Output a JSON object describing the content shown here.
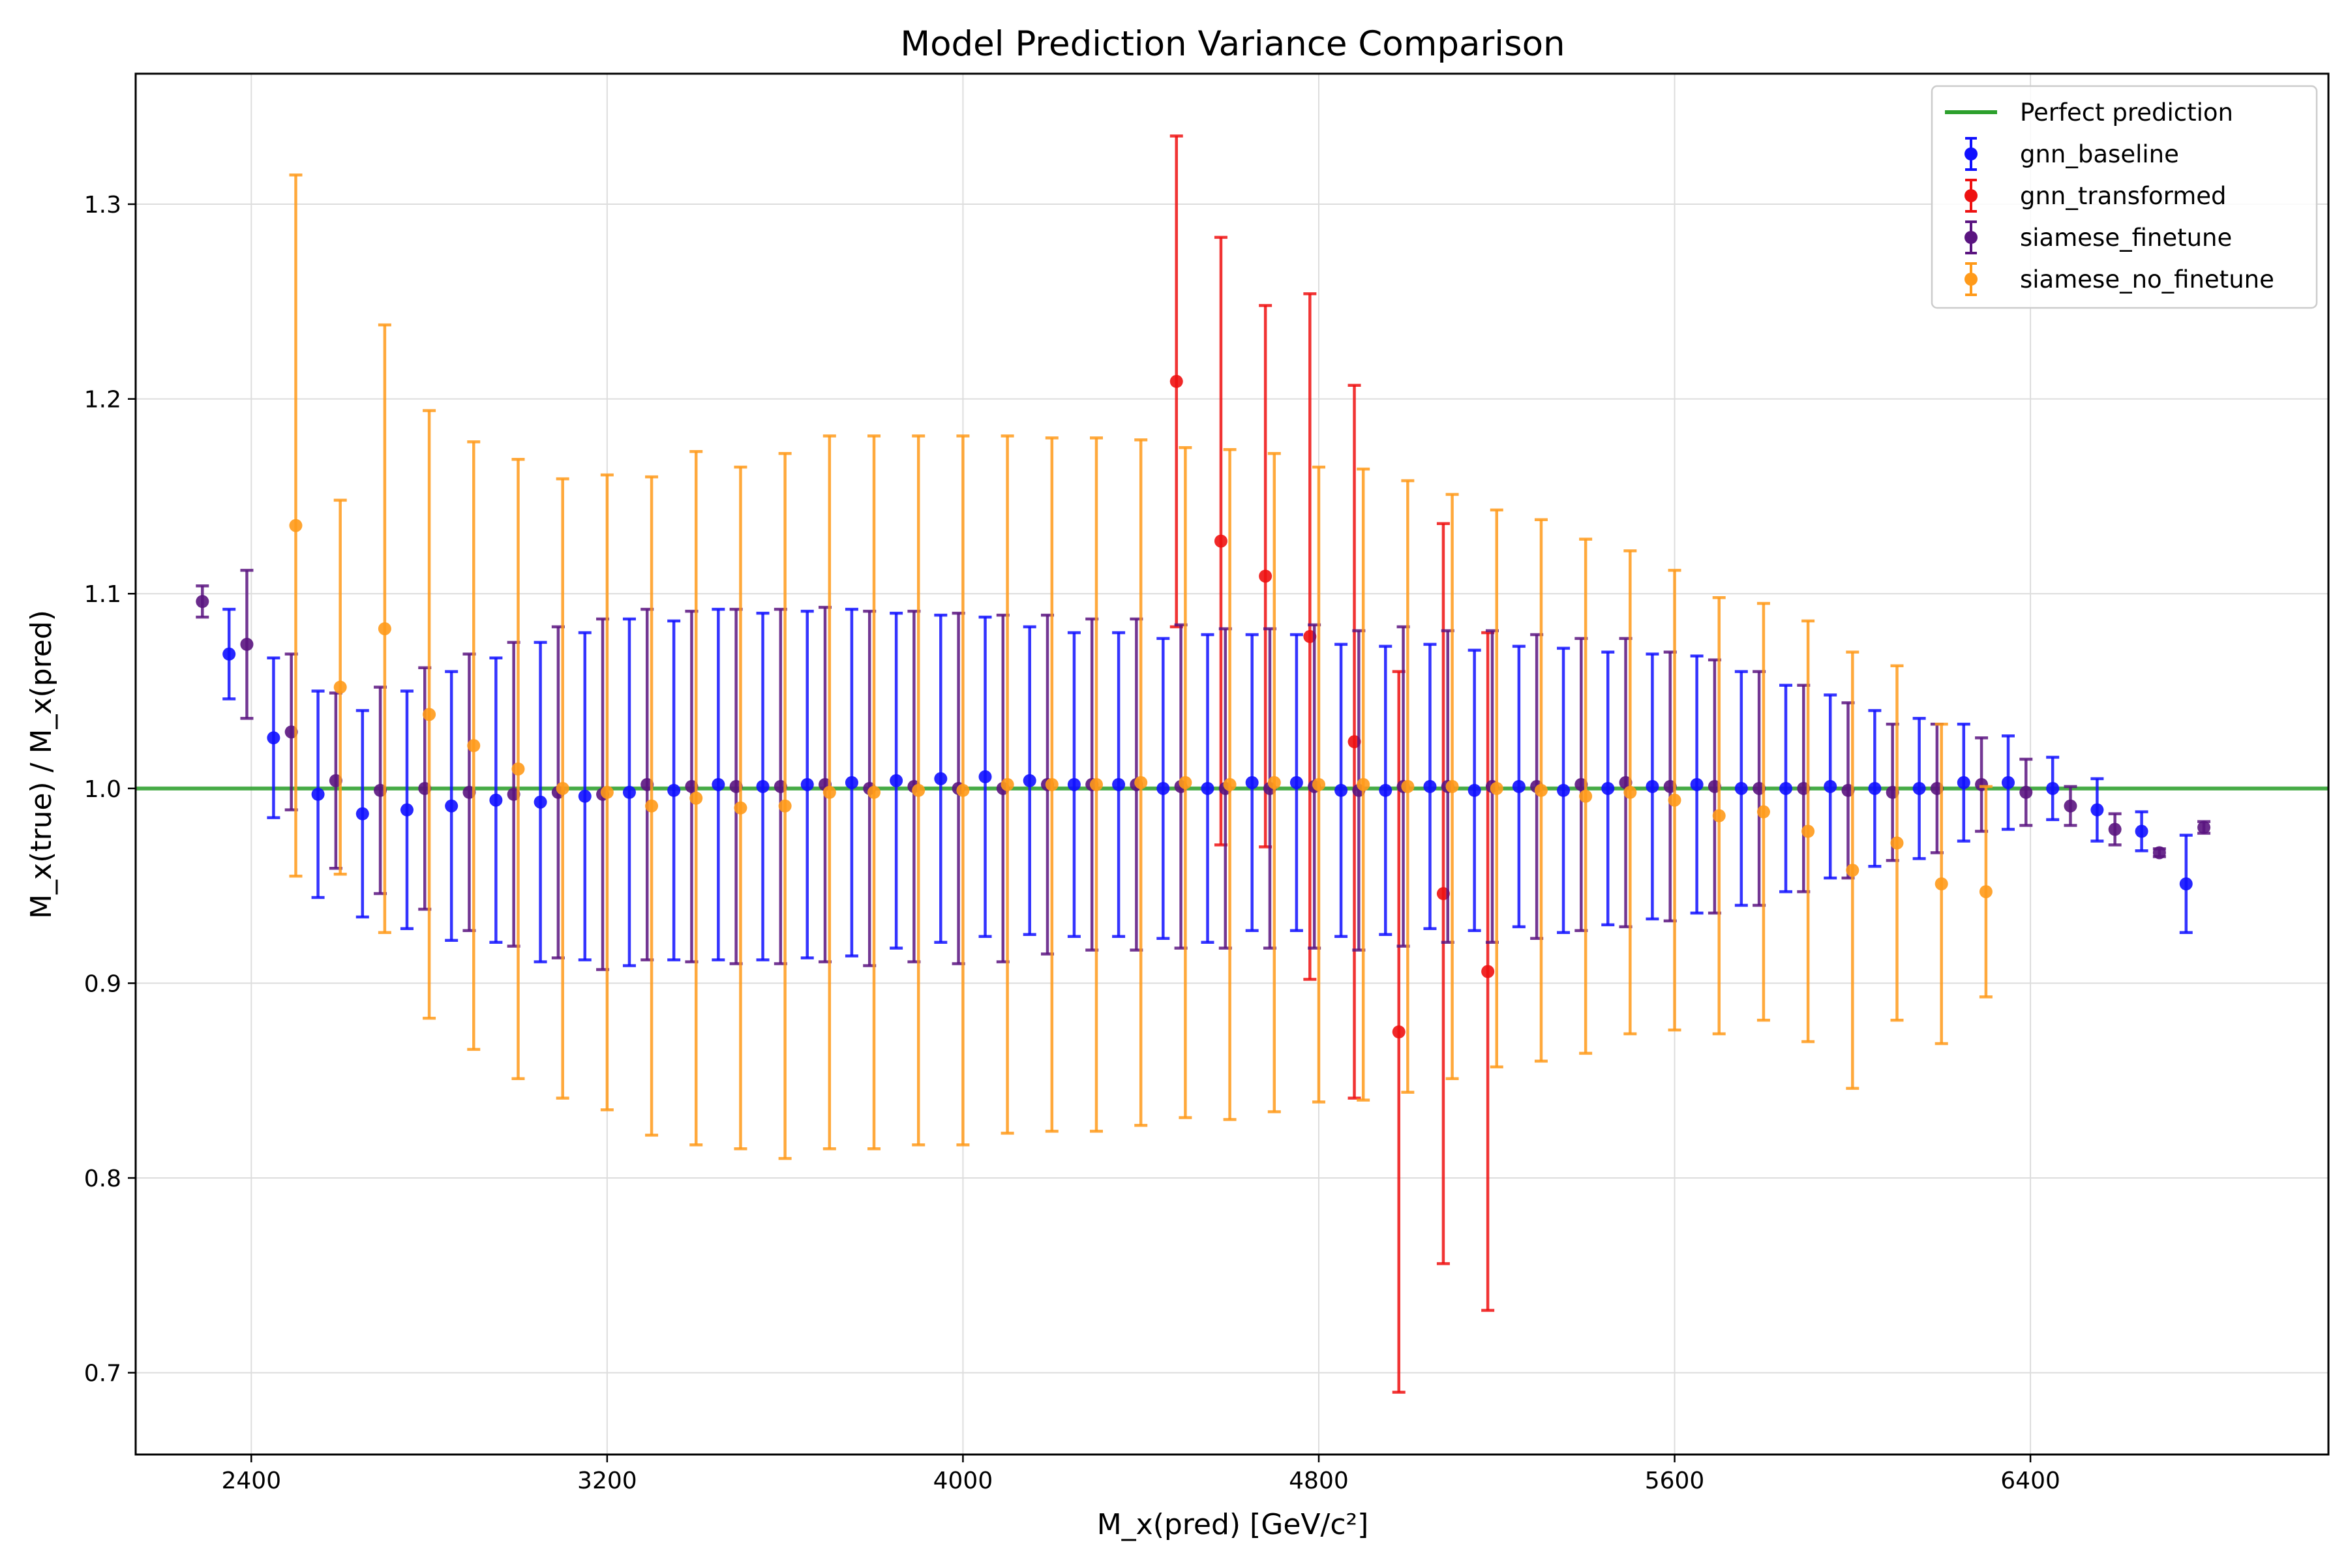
{
  "chart_data": {
    "type": "scatter",
    "title": "Model Prediction Variance Comparison",
    "xlabel": "M_x(pred) [GeV/c²]",
    "ylabel": "M_x(true) / M_x(pred)",
    "xlim": [
      2140,
      7070
    ],
    "ylim": [
      0.658,
      1.367
    ],
    "xticks": [
      2400,
      3200,
      4000,
      4800,
      5600,
      6400
    ],
    "yticks": [
      0.7,
      0.8,
      0.9,
      1.0,
      1.1,
      1.2,
      1.3
    ],
    "grid": true,
    "legend_position": "top-right",
    "reference_line": {
      "label": "Perfect prediction",
      "y": 1.0,
      "color": "#2ca02c"
    },
    "series": [
      {
        "name": "gnn_baseline",
        "color": "#1010ff",
        "x": [
          2350,
          2450,
          2550,
          2650,
          2750,
          2850,
          2950,
          3050,
          3150,
          3250,
          3350,
          3450,
          3550,
          3650,
          3750,
          3850,
          3950,
          4050,
          4150,
          4250,
          4350,
          4450,
          4550,
          4650,
          4750,
          4850,
          4950,
          5050,
          5150,
          5250,
          5350,
          5450,
          5550,
          5650,
          5750,
          5850,
          5950,
          6050,
          6150,
          6250,
          6350,
          6450,
          6550,
          6650,
          6750
        ],
        "y": [
          1.069,
          1.026,
          0.997,
          0.987,
          0.989,
          0.991,
          0.994,
          0.993,
          0.996,
          0.998,
          0.999,
          1.002,
          1.001,
          1.002,
          1.003,
          1.004,
          1.005,
          1.006,
          1.004,
          1.002,
          1.002,
          1.0,
          1.0,
          1.003,
          1.003,
          0.999,
          0.999,
          1.001,
          0.999,
          1.001,
          0.999,
          1.0,
          1.001,
          1.002,
          1.0,
          1.0,
          1.001,
          1.0,
          1.0,
          1.003,
          1.003,
          1.0,
          0.989,
          0.978,
          0.951
        ],
        "yerr": [
          0.023,
          0.041,
          0.053,
          0.053,
          0.061,
          0.069,
          0.073,
          0.082,
          0.084,
          0.089,
          0.087,
          0.09,
          0.089,
          0.089,
          0.089,
          0.086,
          0.084,
          0.082,
          0.079,
          0.078,
          0.078,
          0.077,
          0.079,
          0.076,
          0.076,
          0.075,
          0.074,
          0.073,
          0.072,
          0.072,
          0.073,
          0.07,
          0.068,
          0.066,
          0.06,
          0.053,
          0.047,
          0.04,
          0.036,
          0.03,
          0.024,
          0.016,
          0.016,
          0.01,
          0.025
        ]
      },
      {
        "name": "gnn_transformed",
        "color": "#ee1111",
        "x": [
          4480,
          4580,
          4680,
          4780,
          4880,
          4980,
          5080,
          5180
        ],
        "y": [
          1.209,
          1.127,
          1.109,
          1.078,
          1.024,
          0.875,
          0.946,
          0.906
        ],
        "yerr": [
          0.126,
          0.156,
          0.139,
          0.176,
          0.183,
          0.185,
          0.19,
          0.174
        ]
      },
      {
        "name": "siamese_finetune",
        "color": "#5a1480",
        "x": [
          2290,
          2390,
          2490,
          2590,
          2690,
          2790,
          2890,
          2990,
          3090,
          3190,
          3290,
          3390,
          3490,
          3590,
          3690,
          3790,
          3890,
          3990,
          4090,
          4190,
          4290,
          4390,
          4490,
          4590,
          4690,
          4790,
          4890,
          4990,
          5090,
          5190,
          5290,
          5390,
          5490,
          5590,
          5690,
          5790,
          5890,
          5990,
          6090,
          6190,
          6290,
          6390,
          6490,
          6590,
          6690,
          6790
        ],
        "y": [
          1.096,
          1.074,
          1.029,
          1.004,
          0.999,
          1.0,
          0.998,
          0.997,
          0.998,
          0.997,
          1.002,
          1.001,
          1.001,
          1.001,
          1.002,
          1.0,
          1.001,
          1.0,
          1.0,
          1.002,
          1.002,
          1.002,
          1.001,
          1.0,
          1.0,
          1.001,
          0.999,
          1.001,
          1.001,
          1.001,
          1.001,
          1.002,
          1.003,
          1.001,
          1.001,
          1.0,
          1.0,
          0.999,
          0.998,
          1.0,
          1.002,
          0.998,
          0.991,
          0.979,
          0.967,
          0.98
        ],
        "yerr": [
          0.008,
          0.038,
          0.04,
          0.045,
          0.053,
          0.062,
          0.071,
          0.078,
          0.085,
          0.09,
          0.09,
          0.09,
          0.091,
          0.091,
          0.091,
          0.091,
          0.09,
          0.09,
          0.089,
          0.087,
          0.085,
          0.085,
          0.083,
          0.082,
          0.082,
          0.083,
          0.082,
          0.082,
          0.08,
          0.08,
          0.078,
          0.075,
          0.074,
          0.069,
          0.065,
          0.06,
          0.053,
          0.045,
          0.035,
          0.033,
          0.024,
          0.017,
          0.01,
          0.008,
          0.002,
          0.003
        ]
      },
      {
        "name": "siamese_no_finetune",
        "color": "#ff9a1a",
        "x": [
          2500,
          2600,
          2700,
          2800,
          2900,
          3000,
          3100,
          3200,
          3300,
          3400,
          3500,
          3600,
          3700,
          3800,
          3900,
          4000,
          4100,
          4200,
          4300,
          4400,
          4500,
          4600,
          4700,
          4800,
          4900,
          5000,
          5100,
          5200,
          5300,
          5400,
          5500,
          5600,
          5700,
          5800,
          5900,
          6000,
          6100,
          6200,
          6300
        ],
        "y": [
          1.135,
          1.052,
          1.082,
          1.038,
          1.022,
          1.01,
          1.0,
          0.998,
          0.991,
          0.995,
          0.99,
          0.991,
          0.998,
          0.998,
          0.999,
          0.999,
          1.002,
          1.002,
          1.002,
          1.003,
          1.003,
          1.002,
          1.003,
          1.002,
          1.002,
          1.001,
          1.001,
          1.0,
          0.999,
          0.996,
          0.998,
          0.994,
          0.986,
          0.988,
          0.978,
          0.958,
          0.972,
          0.951,
          0.947
        ],
        "yerr": [
          0.18,
          0.096,
          0.156,
          0.156,
          0.156,
          0.159,
          0.159,
          0.163,
          0.169,
          0.178,
          0.175,
          0.181,
          0.183,
          0.183,
          0.182,
          0.182,
          0.179,
          0.178,
          0.178,
          0.176,
          0.172,
          0.172,
          0.169,
          0.163,
          0.162,
          0.157,
          0.15,
          0.143,
          0.139,
          0.132,
          0.124,
          0.118,
          0.112,
          0.107,
          0.108,
          0.112,
          0.091,
          0.082,
          0.054
        ]
      }
    ]
  }
}
